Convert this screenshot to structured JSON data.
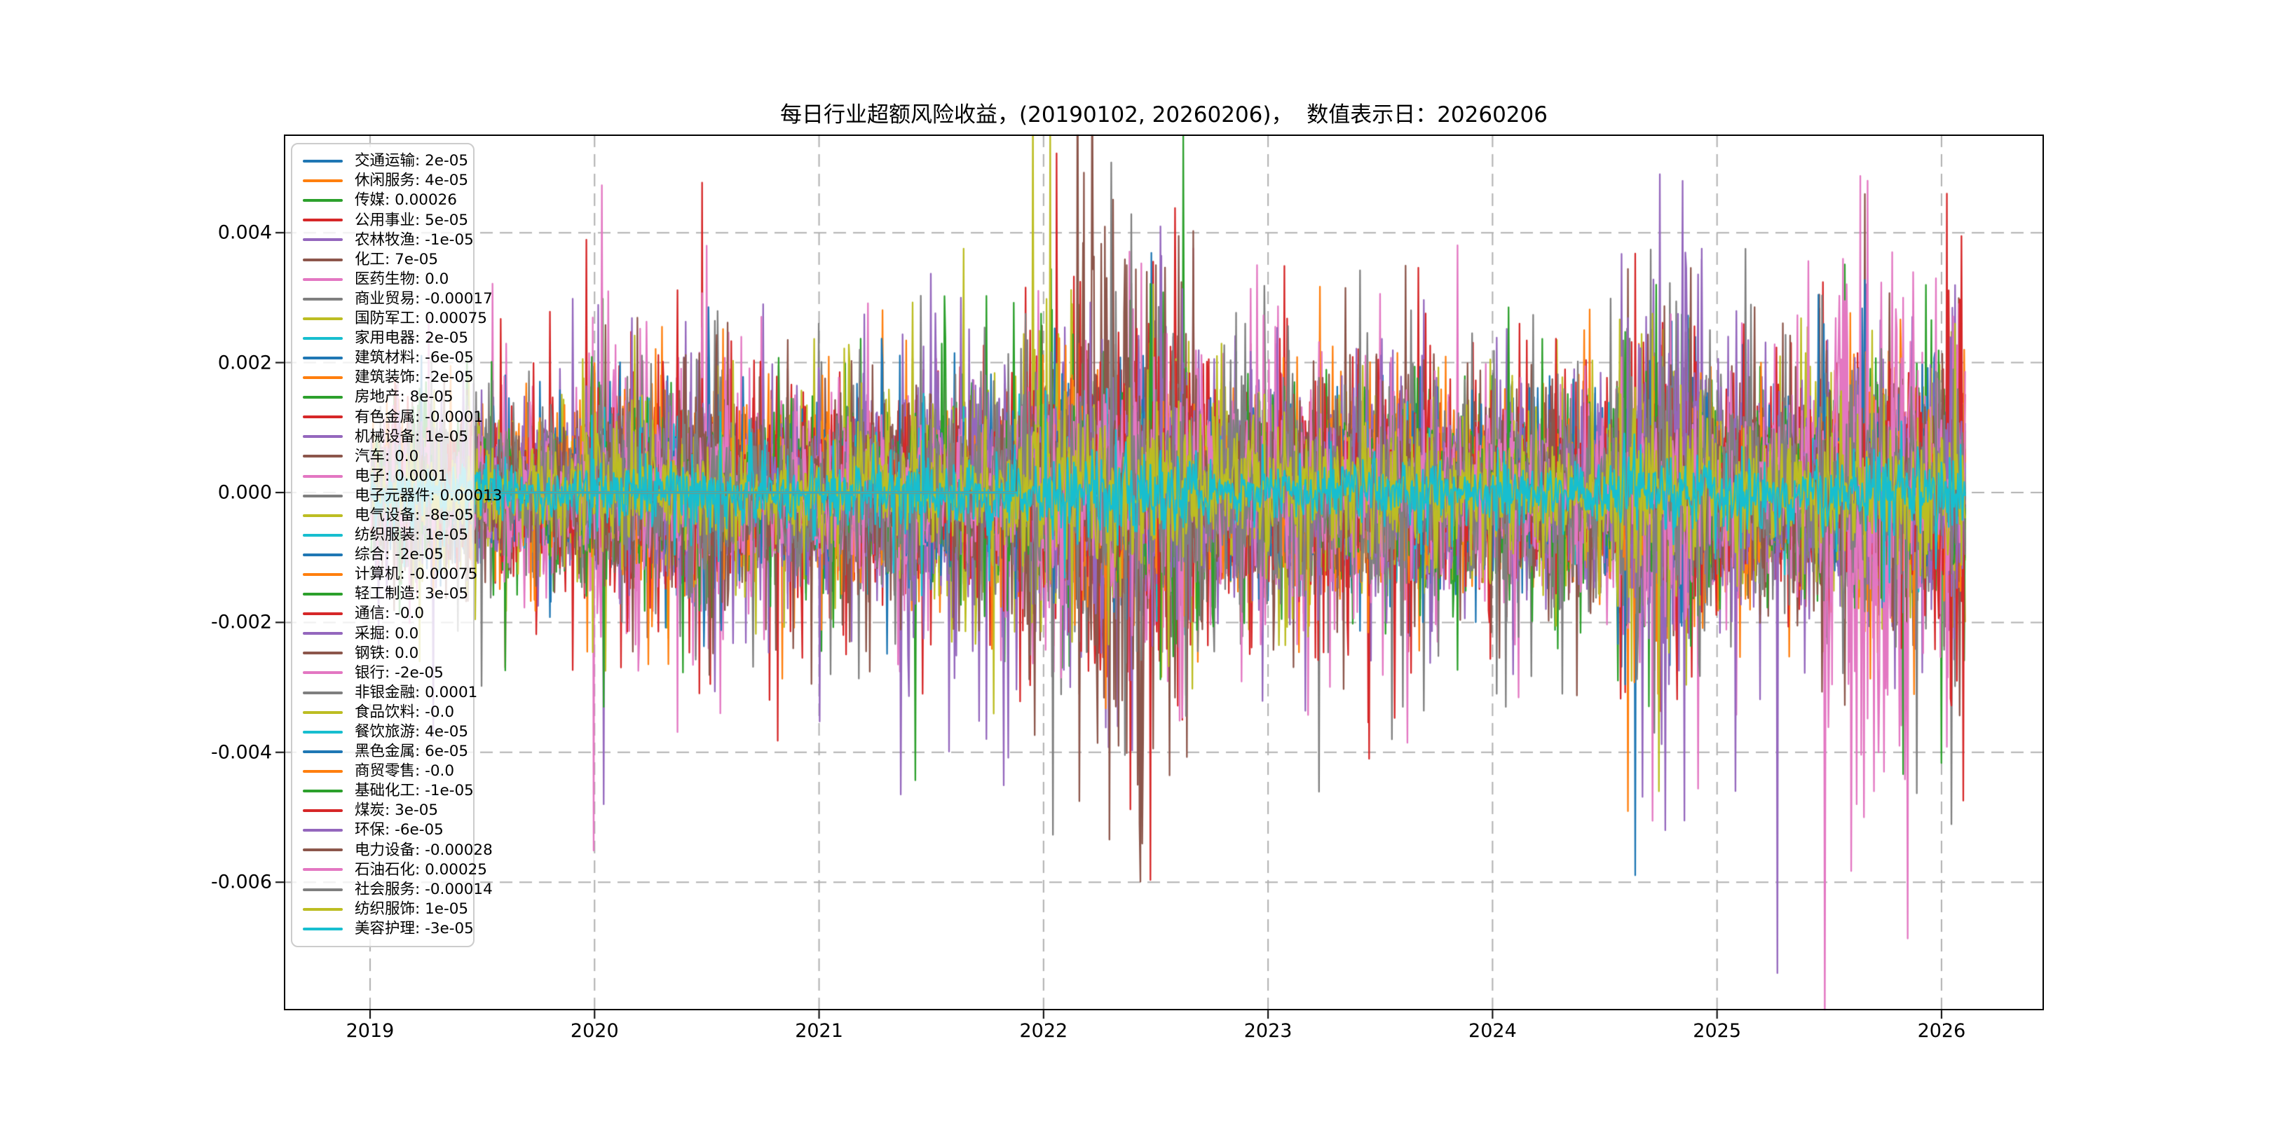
{
  "title": "每日行业超额风险收益，(20190102, 20260206)，  数值表示日：20260206",
  "chart_data": {
    "type": "line",
    "title": "每日行业超额风险收益，(20190102, 20260206)，  数值表示日：20260206",
    "xlabel": "",
    "ylabel": "",
    "date_start": "20190102",
    "date_end": "20260206",
    "value_date": "20260206",
    "x_ticks": [
      2019,
      2020,
      2021,
      2022,
      2023,
      2024,
      2025,
      2026
    ],
    "x_tick_labels": [
      "2019",
      "2020",
      "2021",
      "2022",
      "2023",
      "2024",
      "2025",
      "2026"
    ],
    "y_ticks": [
      0.004,
      0.002,
      0.0,
      -0.002,
      -0.004,
      -0.006
    ],
    "y_tick_labels": [
      "0.004",
      "0.002",
      "0.000",
      "-0.002",
      "-0.004",
      "-0.006"
    ],
    "xlim": [
      2018.616,
      2026.456
    ],
    "ylim": [
      -0.007972,
      0.005512
    ],
    "grid": "dashed",
    "grid_color": "#b0b0b0",
    "legend_position": "upper-left",
    "palette": [
      "#1f77b4",
      "#ff7f0e",
      "#2ca02c",
      "#d62728",
      "#9467bd",
      "#8c564b",
      "#e377c2",
      "#7f7f7f",
      "#bcbd22",
      "#17becf"
    ],
    "series": [
      {
        "name": "交通运输",
        "value": "2e-05",
        "color": "#1f77b4"
      },
      {
        "name": "休闲服务",
        "value": "4e-05",
        "color": "#ff7f0e"
      },
      {
        "name": "传媒",
        "value": "0.00026",
        "color": "#2ca02c"
      },
      {
        "name": "公用事业",
        "value": "5e-05",
        "color": "#d62728"
      },
      {
        "name": "农林牧渔",
        "value": "-1e-05",
        "color": "#9467bd"
      },
      {
        "name": "化工",
        "value": "7e-05",
        "color": "#8c564b"
      },
      {
        "name": "医药生物",
        "value": "0.0",
        "color": "#e377c2"
      },
      {
        "name": "商业贸易",
        "value": "-0.00017",
        "color": "#7f7f7f"
      },
      {
        "name": "国防军工",
        "value": "0.00075",
        "color": "#bcbd22"
      },
      {
        "name": "家用电器",
        "value": "2e-05",
        "color": "#17becf"
      },
      {
        "name": "建筑材料",
        "value": "-6e-05",
        "color": "#1f77b4"
      },
      {
        "name": "建筑装饰",
        "value": "-2e-05",
        "color": "#ff7f0e"
      },
      {
        "name": "房地产",
        "value": "8e-05",
        "color": "#2ca02c"
      },
      {
        "name": "有色金属",
        "value": "-0.0001",
        "color": "#d62728"
      },
      {
        "name": "机械设备",
        "value": "1e-05",
        "color": "#9467bd"
      },
      {
        "name": "汽车",
        "value": "0.0",
        "color": "#8c564b"
      },
      {
        "name": "电子",
        "value": "0.0001",
        "color": "#e377c2"
      },
      {
        "name": "电子元器件",
        "value": "0.00013",
        "color": "#7f7f7f"
      },
      {
        "name": "电气设备",
        "value": "-8e-05",
        "color": "#bcbd22"
      },
      {
        "name": "纺织服装",
        "value": "1e-05",
        "color": "#17becf"
      },
      {
        "name": "综合",
        "value": "-2e-05",
        "color": "#1f77b4"
      },
      {
        "name": "计算机",
        "value": "-0.00075",
        "color": "#ff7f0e"
      },
      {
        "name": "轻工制造",
        "value": "3e-05",
        "color": "#2ca02c"
      },
      {
        "name": "通信",
        "value": "-0.0",
        "color": "#d62728"
      },
      {
        "name": "采掘",
        "value": "0.0",
        "color": "#9467bd"
      },
      {
        "name": "钢铁",
        "value": "0.0",
        "color": "#8c564b"
      },
      {
        "name": "银行",
        "value": "-2e-05",
        "color": "#e377c2"
      },
      {
        "name": "非银金融",
        "value": "0.0001",
        "color": "#7f7f7f"
      },
      {
        "name": "食品饮料",
        "value": "-0.0",
        "color": "#bcbd22"
      },
      {
        "name": "餐饮旅游",
        "value": "4e-05",
        "color": "#17becf"
      },
      {
        "name": "黑色金属",
        "value": "6e-05",
        "color": "#1f77b4"
      },
      {
        "name": "商贸零售",
        "value": "-0.0",
        "color": "#ff7f0e"
      },
      {
        "name": "基础化工",
        "value": "-1e-05",
        "color": "#2ca02c"
      },
      {
        "name": "煤炭",
        "value": "3e-05",
        "color": "#d62728"
      },
      {
        "name": "环保",
        "value": "-6e-05",
        "color": "#9467bd"
      },
      {
        "name": "电力设备",
        "value": "-0.00028",
        "color": "#8c564b"
      },
      {
        "name": "石油石化",
        "value": "0.00025",
        "color": "#e377c2"
      },
      {
        "name": "社会服务",
        "value": "-0.00014",
        "color": "#7f7f7f"
      },
      {
        "name": "纺织服饰",
        "value": "1e-05",
        "color": "#bcbd22"
      },
      {
        "name": "美容护理",
        "value": "-3e-05",
        "color": "#17becf"
      }
    ],
    "noise_model": {
      "seed": 1234,
      "points": 1750,
      "t_start": 2019.0055,
      "t_end": 2026.105,
      "base_sigma": 0.00042,
      "tail_p": 0.12,
      "tail_mult": 2.3,
      "late_start_indices": [
        30,
        31,
        32,
        33,
        34,
        35,
        36,
        37,
        38,
        39
      ],
      "late_start_t": 2021.88,
      "envelope": [
        [
          2018.6,
          2019.1,
          0.75
        ],
        [
          2019.1,
          2019.95,
          0.95
        ],
        [
          2019.95,
          2020.6,
          1.25
        ],
        [
          2020.6,
          2021.0,
          1.1
        ],
        [
          2021.0,
          2021.95,
          1.2
        ],
        [
          2021.95,
          2022.7,
          1.55
        ],
        [
          2022.7,
          2023.3,
          1.15
        ],
        [
          2023.3,
          2023.75,
          1.25
        ],
        [
          2023.75,
          2024.55,
          1.05
        ],
        [
          2024.55,
          2024.95,
          1.55
        ],
        [
          2024.95,
          2025.45,
          1.15
        ],
        [
          2025.45,
          2026.15,
          1.45
        ]
      ],
      "series_scale": [
        0.85,
        0.95,
        1.0,
        1.15,
        1.15,
        1.0,
        1.3,
        1.05,
        1.15,
        0.35,
        0.8,
        0.9,
        1.0,
        1.2,
        1.25,
        1.05,
        1.0,
        1.15,
        1.0,
        0.55,
        0.95,
        1.0,
        0.95,
        1.0,
        1.1,
        1.15,
        1.0,
        1.15,
        0.8,
        0.5,
        0.8,
        0.95,
        1.0,
        1.1,
        1.2,
        1.0,
        1.3,
        1.2,
        0.9,
        0.45
      ],
      "boosts": [
        [
          25,
          2022.15,
          2022.62,
          2.8
        ],
        [
          15,
          2022.15,
          2022.62,
          1.5
        ],
        [
          13,
          2022.2,
          2022.6,
          1.9
        ],
        [
          6,
          2019.95,
          2020.65,
          1.7
        ],
        [
          36,
          2025.45,
          2025.9,
          2.4
        ],
        [
          34,
          2024.6,
          2024.9,
          1.9
        ],
        [
          37,
          2022.75,
          2023.2,
          1.5
        ],
        [
          33,
          2025.95,
          2026.12,
          2.0
        ],
        [
          14,
          2021.3,
          2021.9,
          1.6
        ],
        [
          8,
          2021.5,
          2022.1,
          1.5
        ]
      ],
      "spikes": [
        [
          4,
          2019.28,
          -0.0038
        ],
        [
          8,
          2019.22,
          -0.0026
        ],
        [
          6,
          2020.06,
          0.0031
        ],
        [
          14,
          2020.04,
          -0.0048
        ],
        [
          22,
          2020.04,
          -0.0033
        ],
        [
          6,
          2020.5,
          0.0038
        ],
        [
          6,
          2020.56,
          -0.0034
        ],
        [
          4,
          2020.75,
          0.0029
        ],
        [
          17,
          2021.0,
          0.0026
        ],
        [
          27,
          2021.05,
          -0.0028
        ],
        [
          14,
          2021.63,
          0.003
        ],
        [
          8,
          2021.96,
          0.0022
        ],
        [
          3,
          2021.97,
          0.0021
        ],
        [
          3,
          2022.28,
          0.003
        ],
        [
          25,
          2022.3,
          0.0037
        ],
        [
          25,
          2022.335,
          -0.0039
        ],
        [
          25,
          2022.37,
          0.0035
        ],
        [
          25,
          2022.42,
          -0.0045
        ],
        [
          25,
          2022.46,
          0.0034
        ],
        [
          24,
          2022.33,
          -0.0036
        ],
        [
          13,
          2022.62,
          -0.0035
        ],
        [
          7,
          2022.9,
          0.0026
        ],
        [
          36,
          2022.95,
          0.0035
        ],
        [
          13,
          2023.45,
          -0.0041
        ],
        [
          37,
          2023.55,
          -0.0038
        ],
        [
          27,
          2023.6,
          -0.0033
        ],
        [
          3,
          2024.12,
          0.0026
        ],
        [
          37,
          2024.02,
          -0.0031
        ],
        [
          27,
          2024.06,
          -0.0033
        ],
        [
          34,
          2024.09,
          -0.0028
        ],
        [
          37,
          2024.31,
          -0.0031
        ],
        [
          32,
          2024.73,
          0.0032
        ],
        [
          38,
          2024.74,
          -0.0046
        ],
        [
          34,
          2024.745,
          0.0049
        ],
        [
          34,
          2024.77,
          -0.0052
        ],
        [
          37,
          2024.72,
          -0.0037
        ],
        [
          37,
          2024.97,
          0.0025
        ],
        [
          24,
          2025.05,
          0.0024
        ],
        [
          14,
          2025.12,
          0.0023
        ],
        [
          34,
          2025.27,
          -0.0074
        ],
        [
          36,
          2025.62,
          -0.0048
        ],
        [
          36,
          2025.655,
          -0.005
        ],
        [
          36,
          2025.67,
          0.0048
        ],
        [
          36,
          2025.7,
          -0.0046
        ],
        [
          36,
          2025.745,
          -0.0043
        ],
        [
          36,
          2025.78,
          0.0037
        ],
        [
          6,
          2025.83,
          0.003
        ],
        [
          33,
          2026.07,
          -0.0029
        ],
        [
          38,
          2026.06,
          0.0026
        ],
        [
          33,
          2026.09,
          0.00395
        ],
        [
          31,
          2026.1,
          0.0022
        ]
      ]
    }
  }
}
